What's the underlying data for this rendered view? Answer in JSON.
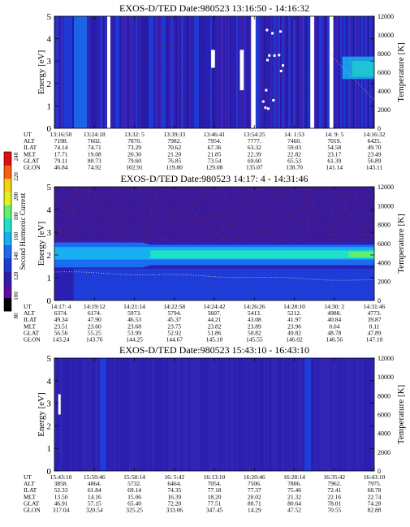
{
  "colorbar": {
    "label": "Second Harmonic Current",
    "ticks": [
      "80",
      "100",
      "120",
      "140",
      "160",
      "180",
      "200",
      "220",
      "240"
    ],
    "colors": [
      "#000000",
      "#5a0fa0",
      "#2a1fb0",
      "#1e3cd8",
      "#1a6cf0",
      "#18b0f0",
      "#20e0c8",
      "#60f070",
      "#e0f020",
      "#f8d010",
      "#f86010",
      "#e01010"
    ]
  },
  "chart_data": [
    {
      "type": "heatmap",
      "title": "EXOS-D/TED   Date:980523   13:16:50 - 14:16:32",
      "ylabel": "Energy [eV]",
      "y2label": "Temperature [K]",
      "ylim": [
        0,
        5
      ],
      "y2lim": [
        0,
        12000
      ],
      "yticks": [
        "0",
        "1",
        "2",
        "3",
        "4",
        "5"
      ],
      "y2ticks": [
        "0",
        "2000",
        "4000",
        "6000",
        "8000",
        "10000",
        "12000"
      ],
      "row_labels": [
        "UT",
        "ALT",
        "ILAT",
        "MLT",
        "GLAT",
        "GLON"
      ],
      "columns": [
        [
          "13:16:50",
          "7198.",
          "74.14",
          "17.71",
          "79.11",
          "46.84"
        ],
        [
          "13:24:18",
          "7602.",
          "74.71",
          "19.08",
          "80.73",
          "74.92"
        ],
        [
          "13:32: 5",
          "7870.",
          "73.29",
          "20.30",
          "79.60",
          "102.91"
        ],
        [
          "13:39:33",
          "7982.",
          "70.62",
          "21.20",
          "76.85",
          "119.80"
        ],
        [
          "13:46:41",
          "7954.",
          "67.36",
          "21.85",
          "73.54",
          "129.08"
        ],
        [
          "13:54:25",
          "7777.",
          "63.32",
          "22.39",
          "69.60",
          "135.07"
        ],
        [
          "14: 1:53",
          "7460.",
          "59.03",
          "22.82",
          "65.53",
          "138.70"
        ],
        [
          "14: 9: 5",
          "7019.",
          "54.58",
          "23.17",
          "61.39",
          "141.14"
        ],
        [
          "14:16:32",
          "6425.",
          "49.70",
          "23.49",
          "56.89",
          "143.11"
        ]
      ]
    },
    {
      "type": "heatmap",
      "title": "EXOS-D/TED   Date:980523   14:17: 4 - 14:31:46",
      "ylabel": "Energy [eV]",
      "y2label": "Temperature [K]",
      "ylim": [
        0,
        5
      ],
      "y2lim": [
        0,
        12000
      ],
      "yticks": [
        "0",
        "1",
        "2",
        "3",
        "4",
        "5"
      ],
      "y2ticks": [
        "0",
        "2000",
        "4000",
        "6000",
        "8000",
        "10000",
        "12000"
      ],
      "row_labels": [
        "UT",
        "ALT",
        "ILAT",
        "MLT",
        "GLAT",
        "GLON"
      ],
      "columns": [
        [
          "14:17: 4",
          "6374.",
          "49.34",
          "23.51",
          "56.56",
          "143.24"
        ],
        [
          "14:19:12",
          "6174.",
          "47.90",
          "23.60",
          "55.25",
          "143.76"
        ],
        [
          "14:21:14",
          "5973.",
          "46.53",
          "23.68",
          "53.99",
          "144.25"
        ],
        [
          "14:22:58",
          "5794.",
          "45.37",
          "23.75",
          "52.92",
          "144.67"
        ],
        [
          "14:24:42",
          "5607.",
          "44.21",
          "23.82",
          "51.86",
          "145.10"
        ],
        [
          "14:26:26",
          "5413.",
          "43.08",
          "23.89",
          "50.82",
          "145.55"
        ],
        [
          "14:28:10",
          "5212.",
          "41.97",
          "23.96",
          "49.82",
          "146.02"
        ],
        [
          "14:30: 2",
          "4988.",
          "40.84",
          "0.04",
          "48.78",
          "146.56"
        ],
        [
          "14:31:46",
          "4773.",
          "39.87",
          "0.11",
          "47.89",
          "147.10"
        ]
      ]
    },
    {
      "type": "heatmap",
      "title": "EXOS-D/TED   Date:980523   15:43:10 - 16:43:10",
      "ylabel": "Energy [eV]",
      "y2label": "Temperature [K]",
      "ylim": [
        0,
        5
      ],
      "y2lim": [
        0,
        12000
      ],
      "yticks": [
        "0",
        "1",
        "2",
        "3",
        "4",
        "5"
      ],
      "y2ticks": [
        "0",
        "2000",
        "4000",
        "6000",
        "8000",
        "10000",
        "12000"
      ],
      "row_labels": [
        "UT",
        "ALT",
        "ILAT",
        "MLT",
        "GLAT",
        "GLON"
      ],
      "columns": [
        [
          "15:43:10",
          "3858.",
          "52.33",
          "13.50",
          "46.91",
          "317.04"
        ],
        [
          "15:50:46",
          "4864.",
          "61.84",
          "14.16",
          "57.15",
          "320.54"
        ],
        [
          "15:58:14",
          "5732.",
          "69.14",
          "15.06",
          "65.40",
          "325.25"
        ],
        [
          "16: 5:42",
          "6464.",
          "74.35",
          "16.39",
          "72.20",
          "333.06"
        ],
        [
          "16:13:10",
          "7054.",
          "77.18",
          "18.20",
          "77.51",
          "347.45"
        ],
        [
          "16:20:46",
          "7506.",
          "77.37",
          "20.02",
          "80.71",
          "14.29"
        ],
        [
          "16:28:14",
          "7806.",
          "75.46",
          "21.32",
          "80.64",
          "47.52"
        ],
        [
          "16:35:42",
          "7962.",
          "72.41",
          "22.16",
          "78.01",
          "70.55"
        ],
        [
          "16:43:10",
          "7975.",
          "68.78",
          "22.74",
          "74.28",
          "82.88"
        ]
      ]
    }
  ]
}
